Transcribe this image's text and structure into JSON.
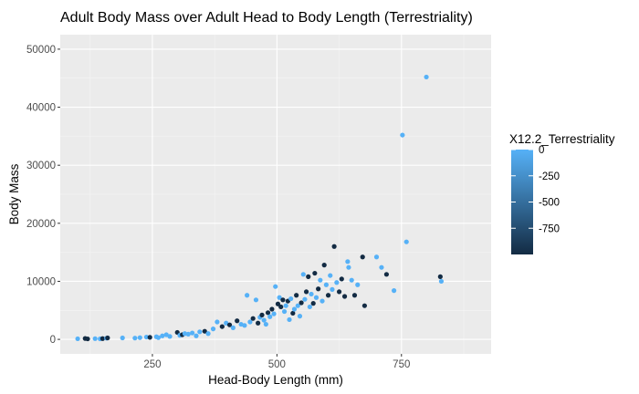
{
  "chart_data": {
    "type": "scatter",
    "title": "Adult Body Mass over Adult Head to Body Length (Terrestriality)",
    "xlabel": "Head-Body Length (mm)",
    "ylabel": "Body Mass",
    "xlim": [
      65,
      930
    ],
    "ylim": [
      -2500,
      52500
    ],
    "x_ticks": [
      250,
      500,
      750
    ],
    "y_ticks": [
      0,
      10000,
      20000,
      30000,
      40000,
      50000
    ],
    "x_tick_labels": [
      "250",
      "500",
      "750"
    ],
    "y_tick_labels": [
      "0",
      "10000",
      "20000",
      "30000",
      "40000",
      "50000"
    ],
    "grid": true,
    "legend": {
      "title": "X12.2_Terrestriality",
      "placement": "right",
      "type": "colorbar",
      "range": [
        -1000,
        0
      ],
      "breaks": [
        0,
        -250,
        -500,
        -750
      ],
      "break_labels": [
        "0",
        "-250",
        "-500",
        "-750"
      ],
      "low_color": "#132B43",
      "high_color": "#56B1F7"
    },
    "points": [
      {
        "x": 100,
        "y": 100,
        "t": 0
      },
      {
        "x": 115,
        "y": 150,
        "t": -1000
      },
      {
        "x": 120,
        "y": 80,
        "t": -1000
      },
      {
        "x": 135,
        "y": 120,
        "t": 0
      },
      {
        "x": 145,
        "y": 90,
        "t": 0
      },
      {
        "x": 150,
        "y": 130,
        "t": -1000
      },
      {
        "x": 158,
        "y": 200,
        "t": 0
      },
      {
        "x": 160,
        "y": 250,
        "t": -1000
      },
      {
        "x": 190,
        "y": 250,
        "t": 0
      },
      {
        "x": 215,
        "y": 220,
        "t": 0
      },
      {
        "x": 225,
        "y": 300,
        "t": 0
      },
      {
        "x": 238,
        "y": 400,
        "t": 0
      },
      {
        "x": 245,
        "y": 350,
        "t": -1000
      },
      {
        "x": 258,
        "y": 450,
        "t": 0
      },
      {
        "x": 262,
        "y": 300,
        "t": 0
      },
      {
        "x": 270,
        "y": 600,
        "t": 0
      },
      {
        "x": 278,
        "y": 800,
        "t": 0
      },
      {
        "x": 285,
        "y": 500,
        "t": 0
      },
      {
        "x": 300,
        "y": 1200,
        "t": -1000
      },
      {
        "x": 305,
        "y": 700,
        "t": 0
      },
      {
        "x": 310,
        "y": 800,
        "t": -1000
      },
      {
        "x": 315,
        "y": 1000,
        "t": 0
      },
      {
        "x": 322,
        "y": 900,
        "t": 0
      },
      {
        "x": 330,
        "y": 1100,
        "t": 0
      },
      {
        "x": 338,
        "y": 600,
        "t": 0
      },
      {
        "x": 345,
        "y": 1300,
        "t": 0
      },
      {
        "x": 355,
        "y": 1400,
        "t": -1000
      },
      {
        "x": 362,
        "y": 1000,
        "t": 0
      },
      {
        "x": 372,
        "y": 1800,
        "t": 0
      },
      {
        "x": 380,
        "y": 3000,
        "t": 0
      },
      {
        "x": 390,
        "y": 2200,
        "t": -1000
      },
      {
        "x": 398,
        "y": 2800,
        "t": 0
      },
      {
        "x": 405,
        "y": 2500,
        "t": -1000
      },
      {
        "x": 412,
        "y": 2000,
        "t": 0
      },
      {
        "x": 420,
        "y": 3200,
        "t": -1000
      },
      {
        "x": 428,
        "y": 2600,
        "t": 0
      },
      {
        "x": 435,
        "y": 2400,
        "t": 0
      },
      {
        "x": 440,
        "y": 7600,
        "t": 0
      },
      {
        "x": 446,
        "y": 3000,
        "t": 0
      },
      {
        "x": 452,
        "y": 3600,
        "t": -1000
      },
      {
        "x": 458,
        "y": 6800,
        "t": 0
      },
      {
        "x": 462,
        "y": 2800,
        "t": -1000
      },
      {
        "x": 466,
        "y": 3800,
        "t": 0
      },
      {
        "x": 470,
        "y": 4200,
        "t": -1000
      },
      {
        "x": 474,
        "y": 3300,
        "t": 0
      },
      {
        "x": 478,
        "y": 2600,
        "t": 0
      },
      {
        "x": 482,
        "y": 4600,
        "t": -1000
      },
      {
        "x": 486,
        "y": 3900,
        "t": 0
      },
      {
        "x": 490,
        "y": 5200,
        "t": -1000
      },
      {
        "x": 494,
        "y": 4400,
        "t": 0
      },
      {
        "x": 497,
        "y": 9100,
        "t": 0
      },
      {
        "x": 502,
        "y": 6100,
        "t": -1000
      },
      {
        "x": 505,
        "y": 7200,
        "t": 0
      },
      {
        "x": 508,
        "y": 5600,
        "t": -1000
      },
      {
        "x": 512,
        "y": 6800,
        "t": -1000
      },
      {
        "x": 515,
        "y": 4800,
        "t": 0
      },
      {
        "x": 518,
        "y": 5800,
        "t": 0
      },
      {
        "x": 522,
        "y": 6600,
        "t": -1000
      },
      {
        "x": 525,
        "y": 3400,
        "t": 0
      },
      {
        "x": 528,
        "y": 7000,
        "t": 0
      },
      {
        "x": 532,
        "y": 4500,
        "t": -1000
      },
      {
        "x": 535,
        "y": 5200,
        "t": 0
      },
      {
        "x": 539,
        "y": 7600,
        "t": -1000
      },
      {
        "x": 542,
        "y": 5800,
        "t": 0
      },
      {
        "x": 546,
        "y": 4000,
        "t": 0
      },
      {
        "x": 549,
        "y": 6300,
        "t": -1000
      },
      {
        "x": 553,
        "y": 11200,
        "t": 0
      },
      {
        "x": 556,
        "y": 6900,
        "t": 0
      },
      {
        "x": 559,
        "y": 8200,
        "t": -1000
      },
      {
        "x": 563,
        "y": 10800,
        "t": -1000
      },
      {
        "x": 566,
        "y": 5600,
        "t": 0
      },
      {
        "x": 569,
        "y": 7800,
        "t": 0
      },
      {
        "x": 573,
        "y": 6200,
        "t": -1000
      },
      {
        "x": 576,
        "y": 11400,
        "t": -1000
      },
      {
        "x": 579,
        "y": 7200,
        "t": 0
      },
      {
        "x": 583,
        "y": 8700,
        "t": -1000
      },
      {
        "x": 587,
        "y": 10200,
        "t": 0
      },
      {
        "x": 591,
        "y": 6600,
        "t": 0
      },
      {
        "x": 595,
        "y": 12800,
        "t": -1000
      },
      {
        "x": 599,
        "y": 9400,
        "t": 0
      },
      {
        "x": 603,
        "y": 7600,
        "t": -1000
      },
      {
        "x": 607,
        "y": 11000,
        "t": 0
      },
      {
        "x": 611,
        "y": 8600,
        "t": 0
      },
      {
        "x": 615,
        "y": 16000,
        "t": -1000
      },
      {
        "x": 620,
        "y": 9800,
        "t": 0
      },
      {
        "x": 625,
        "y": 8200,
        "t": -1000
      },
      {
        "x": 630,
        "y": 10400,
        "t": -1000
      },
      {
        "x": 636,
        "y": 7400,
        "t": -1000
      },
      {
        "x": 642,
        "y": 13400,
        "t": 0
      },
      {
        "x": 644,
        "y": 12400,
        "t": 0
      },
      {
        "x": 650,
        "y": 10200,
        "t": 0
      },
      {
        "x": 656,
        "y": 7600,
        "t": -1000
      },
      {
        "x": 662,
        "y": 9400,
        "t": 0
      },
      {
        "x": 672,
        "y": 14200,
        "t": -1000
      },
      {
        "x": 676,
        "y": 5800,
        "t": -1000
      },
      {
        "x": 700,
        "y": 14200,
        "t": 0
      },
      {
        "x": 710,
        "y": 12400,
        "t": 0
      },
      {
        "x": 720,
        "y": 11200,
        "t": -1000
      },
      {
        "x": 735,
        "y": 8400,
        "t": 0
      },
      {
        "x": 752,
        "y": 35200,
        "t": 0
      },
      {
        "x": 760,
        "y": 16800,
        "t": 0
      },
      {
        "x": 800,
        "y": 45200,
        "t": 0
      },
      {
        "x": 828,
        "y": 10800,
        "t": -1000
      },
      {
        "x": 830,
        "y": 10000,
        "t": 0
      }
    ]
  }
}
